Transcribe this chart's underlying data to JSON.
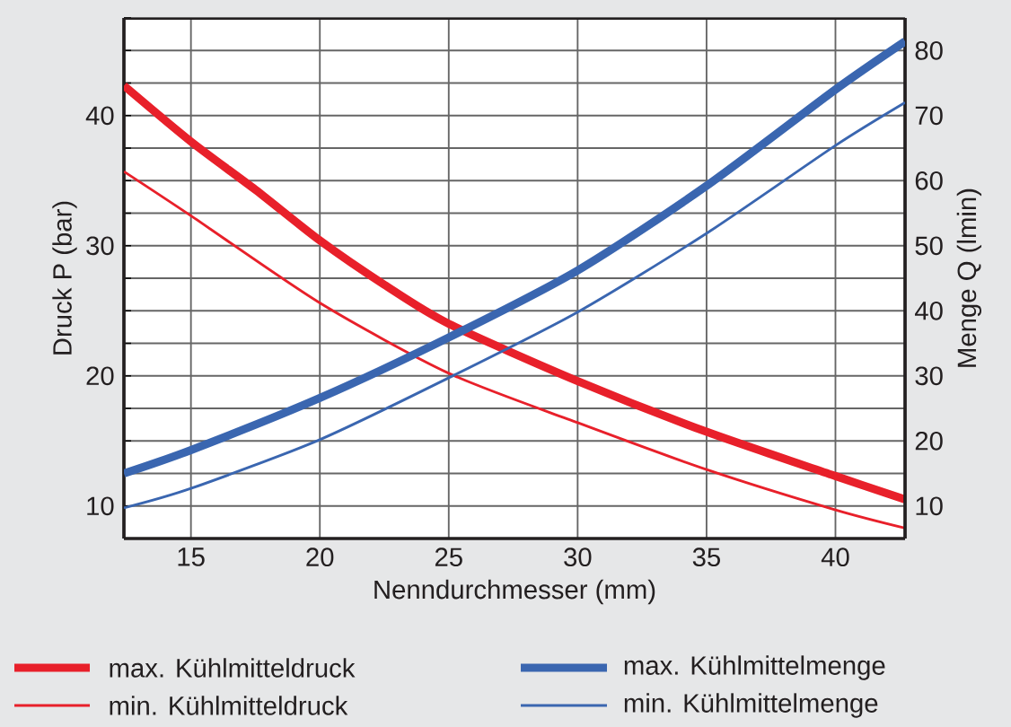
{
  "chart_data": {
    "type": "line",
    "xlabel": "Nenndurchmesser (mm)",
    "ylabel": "Druck P (bar)",
    "y2label": "Menge Q (lmin)",
    "xlim": [
      12.4,
      42.7
    ],
    "xticks": [
      15,
      20,
      25,
      30,
      35,
      40
    ],
    "ylim": [
      7.5,
      47.5
    ],
    "yticks": [
      {
        "value": 7.5,
        "label": null
      },
      10,
      {
        "value": 12.5,
        "label": null
      },
      {
        "value": 15,
        "label": null
      },
      {
        "value": 17.5,
        "label": null
      },
      20,
      {
        "value": 22.5,
        "label": null
      },
      {
        "value": 25,
        "label": null
      },
      {
        "value": 27.5,
        "label": null
      },
      30,
      {
        "value": 32.5,
        "label": null
      },
      {
        "value": 35,
        "label": null
      },
      {
        "value": 37.5,
        "label": null
      },
      40,
      {
        "value": 42.5,
        "label": null
      },
      {
        "value": 45,
        "label": null
      },
      {
        "value": 47.5,
        "label": null
      }
    ],
    "y2lim": [
      5,
      85
    ],
    "y2ticks": [
      10,
      20,
      30,
      40,
      50,
      60,
      70,
      80
    ],
    "grid": true,
    "legend": "bottom",
    "series": [
      {
        "name": "max. Kühlmitteldruck",
        "color": "#e8202a",
        "x": [
          12.4,
          15,
          17.5,
          20,
          22.5,
          25,
          30,
          35,
          40,
          42.7
        ],
        "values": [
          42.3,
          38.0,
          34.3,
          30.4,
          27.0,
          24.0,
          19.6,
          15.7,
          12.3,
          10.5
        ]
      },
      {
        "name": "min. Kühlmitteldruck",
        "color": "#e8202a",
        "x": [
          12.4,
          15,
          20,
          25,
          30,
          35,
          40,
          42.7
        ],
        "values": [
          35.7,
          32.3,
          25.6,
          20.2,
          16.4,
          12.8,
          9.7,
          8.3
        ]
      },
      {
        "name": "max. Kühlmittelmenge",
        "color": "#3a66b0",
        "axis": "y2",
        "x": [
          12.4,
          15,
          20,
          25,
          30,
          35,
          40,
          42.7
        ],
        "values": [
          15.0,
          18.6,
          26.6,
          35.9,
          46.2,
          59.2,
          74.0,
          81.4
        ]
      },
      {
        "name": "min. Kühlmittelmenge",
        "color": "#3a66b0",
        "axis": "y2",
        "x": [
          12.4,
          15,
          20,
          25,
          30,
          35,
          40,
          42.7
        ],
        "values": [
          9.7,
          12.7,
          20.2,
          29.7,
          39.8,
          51.9,
          65.4,
          72.0
        ]
      }
    ]
  }
}
